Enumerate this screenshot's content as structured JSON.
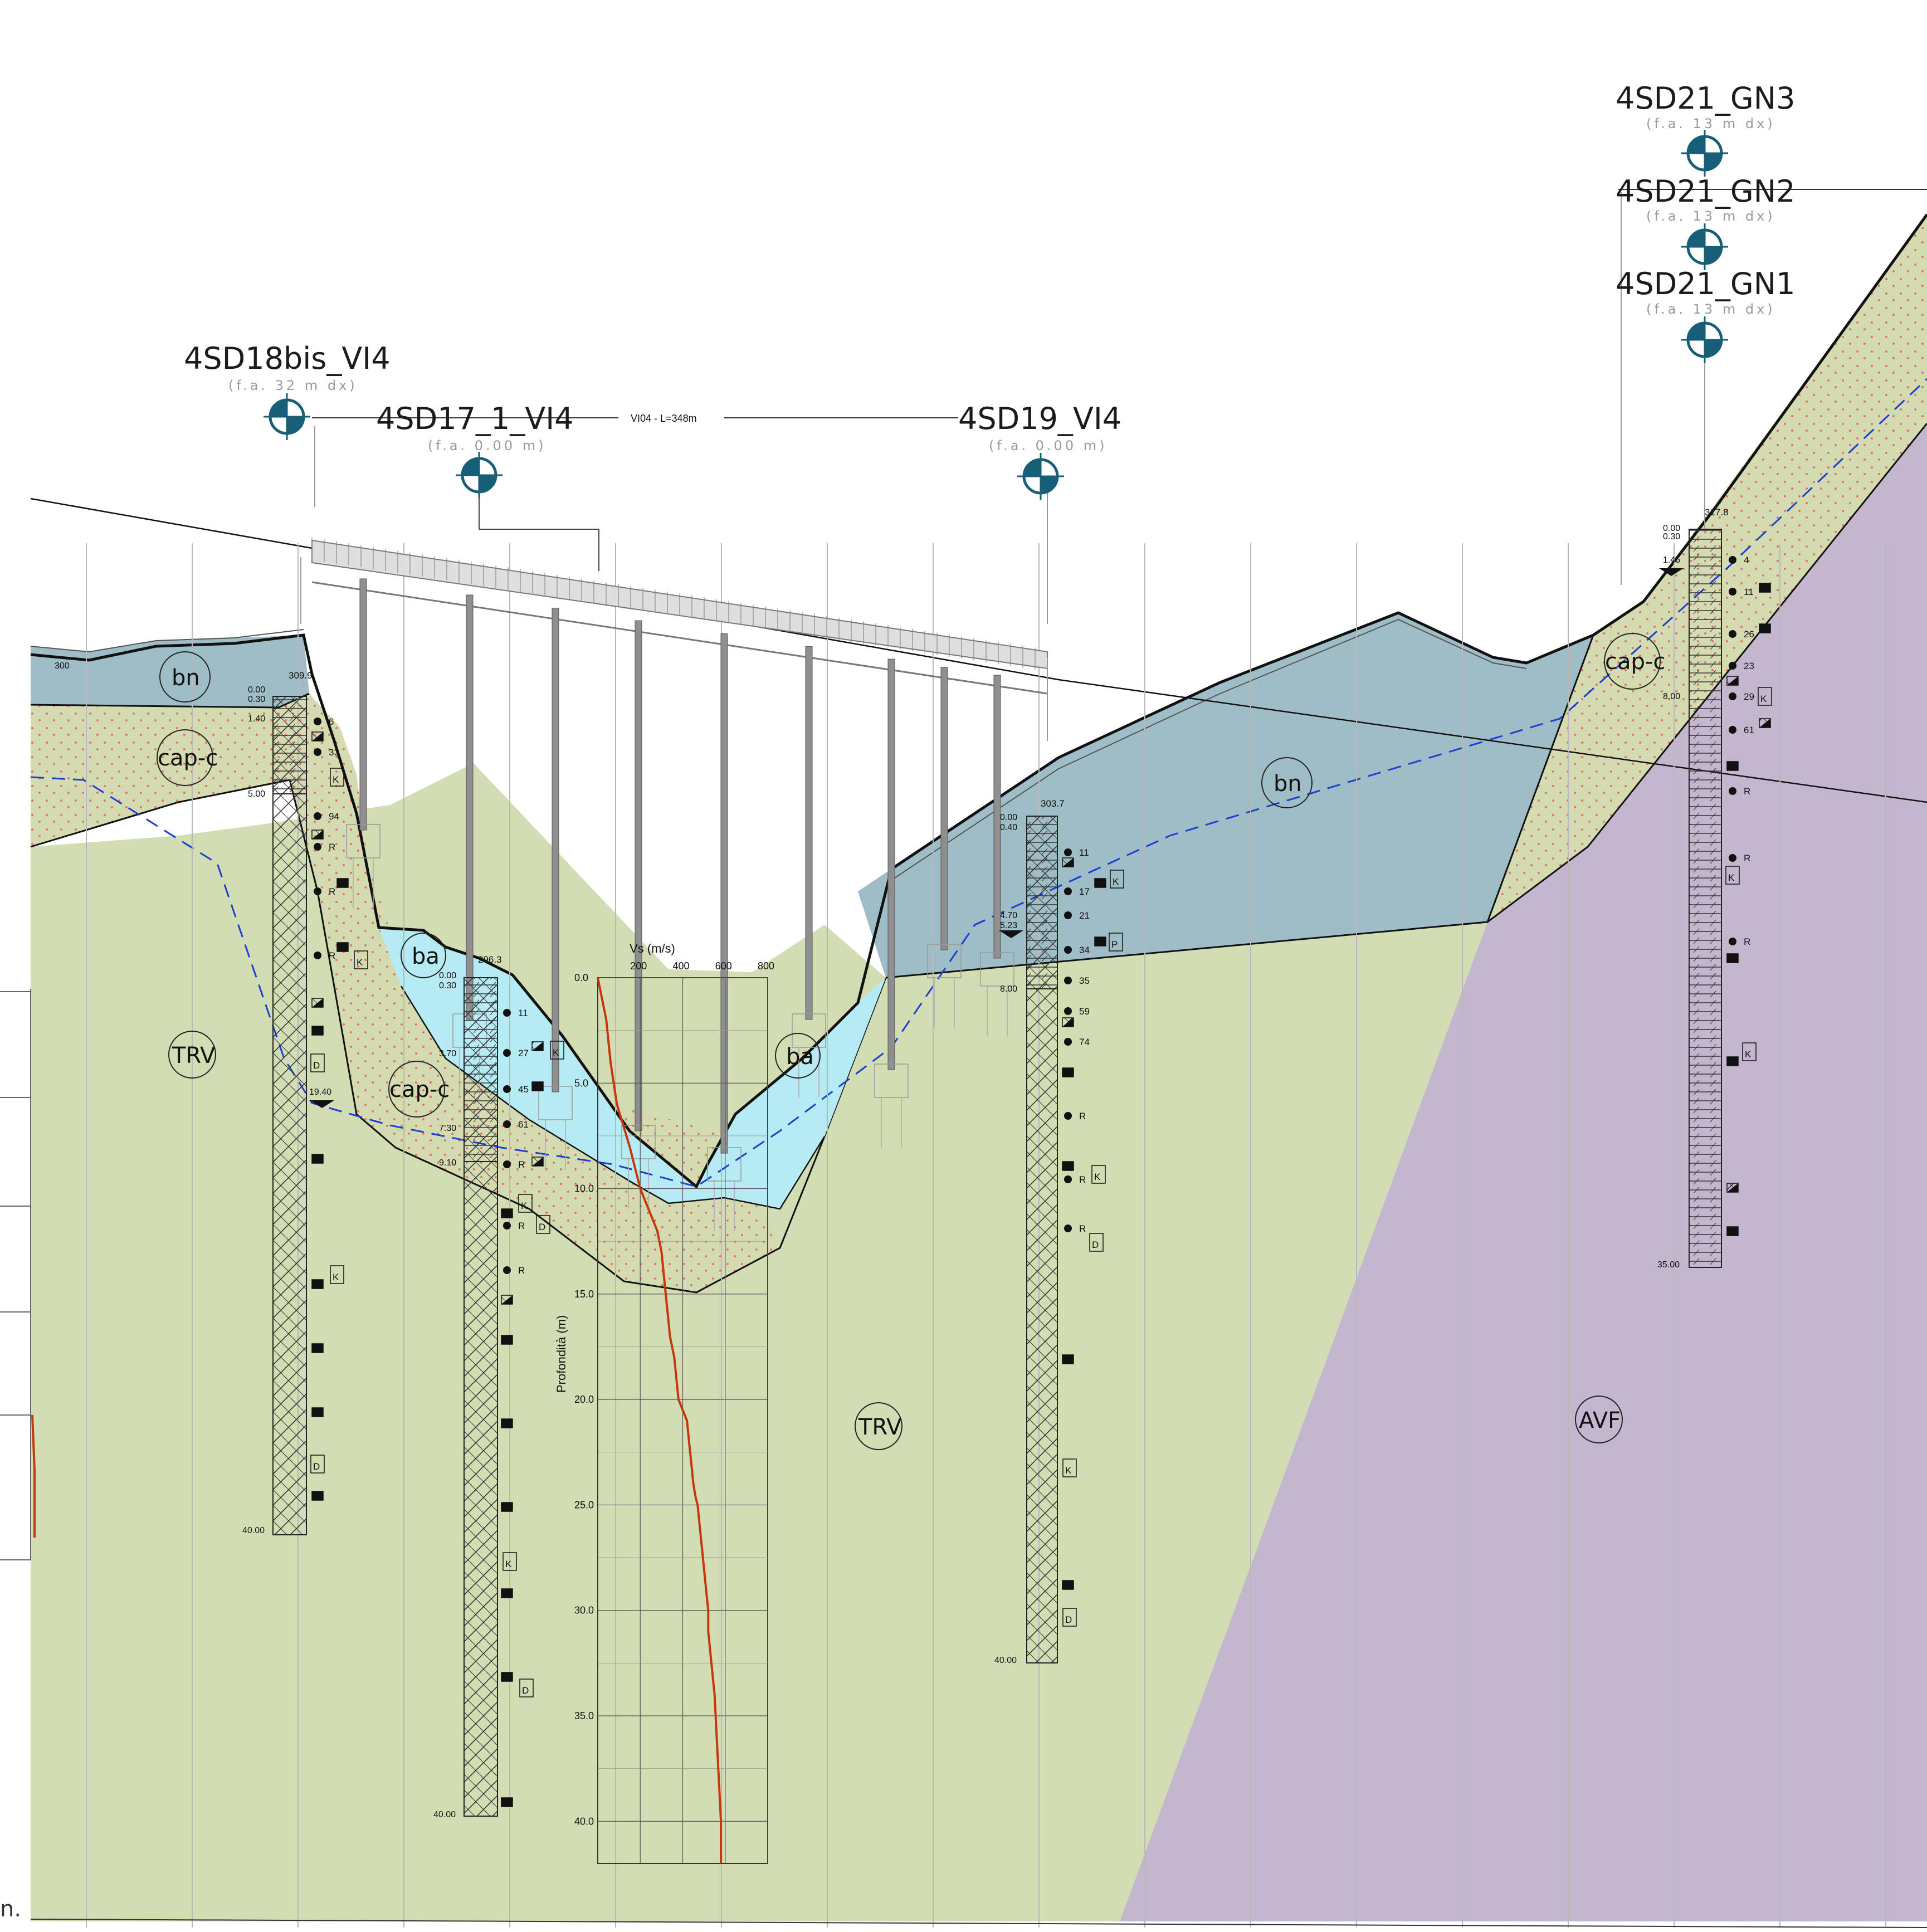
{
  "header": {
    "bridge_label": "VI04 - L=348m",
    "side_text": "n."
  },
  "colors": {
    "trv": "#d2ddb4",
    "cap": "#d4dbb0",
    "bn": "#9fbdc6",
    "ba": "#b7ebf4",
    "avf": "#c5b6cf",
    "marker": "#175f78",
    "vs_profile": "#c8370c",
    "water_table": "#1c3fd0"
  },
  "boreholes": [
    {
      "id": "4SD18bis_VI4",
      "fa": "(f.a. 32 m dx)",
      "top": "309.9",
      "depths": [
        "0.00",
        "0.30",
        "1.40",
        "5.00",
        "19.40",
        "40.00"
      ],
      "spt": [
        "6",
        "33",
        "94",
        "R",
        "R",
        "R"
      ]
    },
    {
      "id": "4SD17_1_VI4",
      "fa": "(f.a. 0.00 m)",
      "top": "296.3",
      "depths": [
        "0.00",
        "0.30",
        "3.70",
        "7.30",
        "9.10",
        "40.00"
      ],
      "spt": [
        "11",
        "27",
        "45",
        "61",
        "R",
        "R",
        "R"
      ]
    },
    {
      "id": "4SD19_VI4",
      "fa": "(f.a. 0.00 m)",
      "top": "303.7",
      "depths": [
        "0.00",
        "0.40",
        "4.70",
        "5.23",
        "8.00",
        "40.00"
      ],
      "spt": [
        "11",
        "17",
        "21",
        "34",
        "35",
        "59",
        "74",
        "R",
        "R",
        "R"
      ]
    },
    {
      "id": "4SD21_GN3",
      "fa": "(f.a. 13 m dx)"
    },
    {
      "id": "4SD21_GN2",
      "fa": "(f.a. 13 m dx)"
    },
    {
      "id": "4SD21_GN1",
      "fa": "(f.a. 13 m dx)",
      "top": "317.8",
      "depths": [
        "0.00",
        "0.30",
        "1.45",
        "8.00",
        "35.00"
      ],
      "spt": [
        "4",
        "11",
        "26",
        "23",
        "29",
        "61",
        "R",
        "R",
        "R"
      ]
    }
  ],
  "units": {
    "bn": "bn",
    "cap_c": "cap-c",
    "ba": "ba",
    "trv": "TRV",
    "avf": "AVF"
  },
  "sample_codes": {
    "k": "K",
    "d": "D",
    "p": "P"
  },
  "vs_chart": {
    "title": "Vs  (m/s)",
    "ylabel": "Profondità (m)",
    "x_ticks": [
      "200",
      "400",
      "600",
      "800"
    ],
    "y_ticks": [
      "0.0",
      "5.0",
      "10.0",
      "15.0",
      "20.0",
      "25.0",
      "30.0",
      "35.0",
      "40.0"
    ]
  },
  "left_marks": {
    "elev": "300"
  },
  "chart_data": {
    "type": "line",
    "title": "",
    "xlabel": "Vs  (m/s)",
    "ylabel": "Profondità (m)",
    "xlim": [
      0,
      800
    ],
    "ylim": [
      0,
      42
    ],
    "series": [
      {
        "x": [
          0,
          40,
          60,
          90,
          150,
          200,
          280,
          300,
          310,
          320,
          330,
          340,
          360,
          370,
          380,
          400,
          420,
          430,
          440,
          450,
          460,
          470,
          480,
          490,
          500,
          510,
          520,
          520,
          530,
          540,
          550,
          560,
          570,
          580,
          580
        ],
        "y": [
          0,
          2,
          4,
          6,
          8,
          10,
          12,
          13,
          14,
          15,
          16,
          17,
          18,
          19,
          20,
          20.5,
          21,
          22,
          23,
          24,
          24.6,
          25,
          26,
          27,
          28,
          29,
          30,
          31,
          32,
          33,
          34,
          36,
          38,
          40,
          42
        ]
      }
    ]
  }
}
